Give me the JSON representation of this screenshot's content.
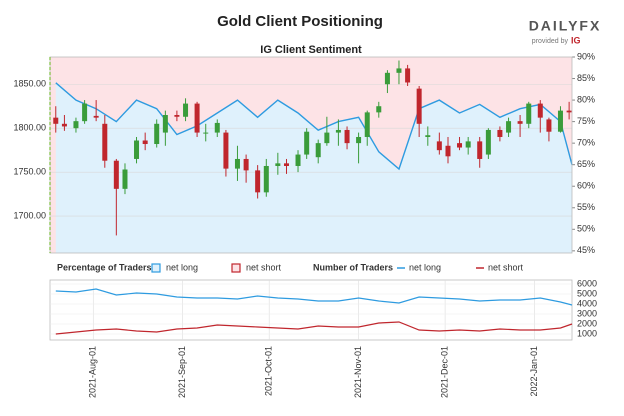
{
  "branding": {
    "name": "DAILYFX",
    "provided": "provided by",
    "brand": "IG"
  },
  "chart_data": [
    {
      "type": "candlestick",
      "title": "Gold Client Positioning",
      "subtitle": "IG Client Sentiment",
      "xlim": [
        "2021-07-17",
        "2022-01-14"
      ],
      "x": [
        "2021-07-19",
        "2021-07-22",
        "2021-07-26",
        "2021-07-29",
        "2021-08-02",
        "2021-08-05",
        "2021-08-09",
        "2021-08-12",
        "2021-08-16",
        "2021-08-19",
        "2021-08-23",
        "2021-08-26",
        "2021-08-30",
        "2021-09-02",
        "2021-09-06",
        "2021-09-09",
        "2021-09-13",
        "2021-09-16",
        "2021-09-20",
        "2021-09-23",
        "2021-09-27",
        "2021-09-30",
        "2021-10-04",
        "2021-10-07",
        "2021-10-11",
        "2021-10-14",
        "2021-10-18",
        "2021-10-21",
        "2021-10-25",
        "2021-10-28",
        "2021-11-01",
        "2021-11-04",
        "2021-11-08",
        "2021-11-11",
        "2021-11-15",
        "2021-11-18",
        "2021-11-22",
        "2021-11-25",
        "2021-11-29",
        "2021-12-02",
        "2021-12-06",
        "2021-12-09",
        "2021-12-13",
        "2021-12-16",
        "2021-12-20",
        "2021-12-23",
        "2021-12-27",
        "2021-12-30",
        "2022-01-03",
        "2022-01-06",
        "2022-01-10",
        "2022-01-13"
      ],
      "open": [
        1812,
        1805,
        1800,
        1808,
        1814,
        1805,
        1763,
        1731,
        1765,
        1786,
        1782,
        1795,
        1815,
        1813,
        1828,
        1795,
        1795,
        1795,
        1754,
        1765,
        1752,
        1727,
        1757,
        1760,
        1757,
        1770,
        1767,
        1783,
        1795,
        1798,
        1783,
        1790,
        1818,
        1850,
        1863,
        1868,
        1845,
        1790,
        1785,
        1780,
        1783,
        1778,
        1785,
        1770,
        1798,
        1795,
        1808,
        1805,
        1828,
        1810,
        1796,
        1820
      ],
      "high": [
        1825,
        1815,
        1812,
        1832,
        1832,
        1815,
        1765,
        1760,
        1790,
        1795,
        1810,
        1820,
        1820,
        1834,
        1830,
        1805,
        1810,
        1798,
        1780,
        1770,
        1758,
        1765,
        1772,
        1765,
        1775,
        1800,
        1787,
        1813,
        1810,
        1802,
        1795,
        1820,
        1830,
        1866,
        1877,
        1872,
        1848,
        1802,
        1795,
        1790,
        1790,
        1790,
        1790,
        1800,
        1802,
        1812,
        1815,
        1830,
        1832,
        1812,
        1825,
        1830
      ],
      "low": [
        1795,
        1797,
        1795,
        1805,
        1808,
        1755,
        1678,
        1725,
        1760,
        1775,
        1778,
        1780,
        1808,
        1808,
        1790,
        1785,
        1790,
        1745,
        1740,
        1738,
        1720,
        1722,
        1747,
        1748,
        1750,
        1765,
        1760,
        1780,
        1780,
        1776,
        1760,
        1780,
        1812,
        1840,
        1850,
        1848,
        1790,
        1780,
        1770,
        1760,
        1775,
        1770,
        1755,
        1765,
        1785,
        1790,
        1790,
        1800,
        1795,
        1785,
        1795,
        1810
      ],
      "close": [
        1805,
        1802,
        1808,
        1828,
        1812,
        1763,
        1731,
        1753,
        1786,
        1782,
        1805,
        1815,
        1813,
        1828,
        1795,
        1795,
        1806,
        1754,
        1765,
        1752,
        1727,
        1757,
        1760,
        1757,
        1770,
        1796,
        1783,
        1795,
        1798,
        1783,
        1790,
        1818,
        1825,
        1863,
        1868,
        1852,
        1805,
        1792,
        1775,
        1768,
        1778,
        1785,
        1765,
        1798,
        1790,
        1808,
        1805,
        1828,
        1812,
        1796,
        1820,
        1818
      ],
      "up_color": "#3a9c3a",
      "down_color": "#c0262d",
      "ylim": [
        1658,
        1881
      ],
      "yticks": [
        {
          "value": 1700,
          "label": "1700.00"
        },
        {
          "value": 1750,
          "label": "1750.00"
        },
        {
          "value": 1800,
          "label": "1800.00"
        },
        {
          "value": 1850,
          "label": "1850.00"
        }
      ],
      "y2lim": [
        44.5,
        90
      ],
      "y2ticks": [
        {
          "value": 45,
          "label": "45%"
        },
        {
          "value": 50,
          "label": "50%"
        },
        {
          "value": 55,
          "label": "55%"
        },
        {
          "value": 60,
          "label": "60%"
        },
        {
          "value": 65,
          "label": "65%"
        },
        {
          "value": 70,
          "label": "70%"
        },
        {
          "value": 75,
          "label": "75%"
        },
        {
          "value": 80,
          "label": "80%"
        },
        {
          "value": 85,
          "label": "85%"
        },
        {
          "value": 90,
          "label": "90%"
        }
      ],
      "series": [
        {
          "name": "net long",
          "color": "#2e9be0",
          "axis": "y2",
          "x": [
            "2021-07-19",
            "2021-07-26",
            "2021-08-02",
            "2021-08-09",
            "2021-08-16",
            "2021-08-23",
            "2021-08-30",
            "2021-09-06",
            "2021-09-13",
            "2021-09-20",
            "2021-09-27",
            "2021-10-04",
            "2021-10-11",
            "2021-10-18",
            "2021-10-25",
            "2021-11-01",
            "2021-11-08",
            "2021-11-15",
            "2021-11-22",
            "2021-11-29",
            "2021-12-06",
            "2021-12-13",
            "2021-12-20",
            "2021-12-27",
            "2022-01-03",
            "2022-01-10",
            "2022-01-14"
          ],
          "values": [
            84,
            80,
            78,
            75,
            80,
            78,
            72,
            74,
            77,
            80,
            76,
            80,
            77,
            73,
            75,
            76,
            68,
            64,
            78,
            80,
            77,
            79,
            76,
            78,
            79,
            75,
            65
          ]
        }
      ],
      "legend_title": "Percentage of Traders",
      "legend": [
        {
          "name": "net long",
          "color": "#2e9be0",
          "fill": "#dff1fc"
        },
        {
          "name": "net short",
          "color": "#c0262d",
          "fill": "#fde3e6"
        }
      ],
      "grid": true
    },
    {
      "type": "line",
      "legend_title": "Number of Traders",
      "xlim": [
        "2021-07-17",
        "2022-01-14"
      ],
      "x": [
        "2021-07-19",
        "2021-07-26",
        "2021-08-02",
        "2021-08-09",
        "2021-08-16",
        "2021-08-23",
        "2021-08-30",
        "2021-09-06",
        "2021-09-13",
        "2021-09-20",
        "2021-09-27",
        "2021-10-04",
        "2021-10-11",
        "2021-10-18",
        "2021-10-25",
        "2021-11-01",
        "2021-11-08",
        "2021-11-15",
        "2021-11-22",
        "2021-11-29",
        "2021-12-06",
        "2021-12-13",
        "2021-12-20",
        "2021-12-27",
        "2022-01-03",
        "2022-01-10",
        "2022-01-14"
      ],
      "xticks": [
        {
          "value": "2021-08-01",
          "label": "2021-Aug-01"
        },
        {
          "value": "2021-09-01",
          "label": "2021-Sep-01"
        },
        {
          "value": "2021-10-01",
          "label": "2021-Oct-01"
        },
        {
          "value": "2021-11-01",
          "label": "2021-Nov-01"
        },
        {
          "value": "2021-12-01",
          "label": "2021-Dec-01"
        },
        {
          "value": "2022-01-01",
          "label": "2022-Jan-01"
        }
      ],
      "ylim": [
        400,
        6400
      ],
      "yticks": [
        1000,
        2000,
        3000,
        4000,
        5000,
        6000
      ],
      "series": [
        {
          "name": "net long",
          "color": "#2e9be0",
          "values": [
            5300,
            5200,
            5500,
            4900,
            5100,
            5000,
            4700,
            4600,
            4600,
            4500,
            4800,
            4600,
            4500,
            4300,
            4300,
            4600,
            4300,
            4100,
            4700,
            4600,
            4500,
            4300,
            4400,
            4400,
            4600,
            4200,
            3900
          ]
        },
        {
          "name": "net short",
          "color": "#c0262d",
          "values": [
            1000,
            1200,
            1400,
            1500,
            1300,
            1200,
            1500,
            1600,
            1900,
            1800,
            1700,
            1600,
            1500,
            1800,
            1700,
            1700,
            2100,
            2200,
            1400,
            1300,
            1400,
            1300,
            1500,
            1400,
            1400,
            1600,
            2000
          ]
        }
      ],
      "grid": true
    }
  ]
}
